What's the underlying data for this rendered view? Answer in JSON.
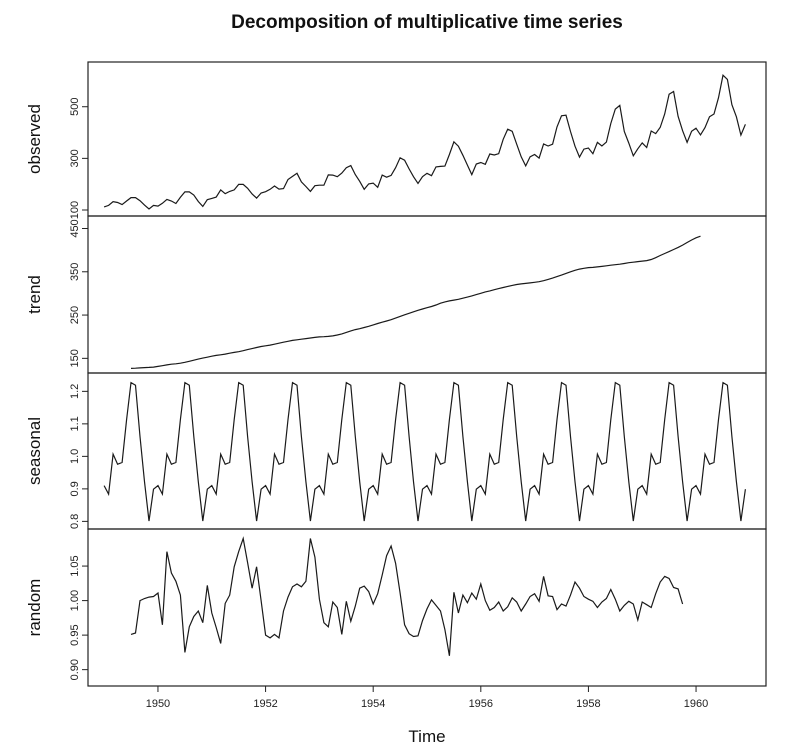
{
  "chart_data": {
    "type": "line",
    "title": "Decomposition of multiplicative time series",
    "xlabel": "Time",
    "xlim": [
      1948.7,
      1961.3
    ],
    "x_ticks": [
      "1950",
      "1952",
      "1954",
      "1956",
      "1958",
      "1960"
    ],
    "start": 1949,
    "frequency": 12,
    "grid": false,
    "panels": [
      {
        "name": "observed",
        "ylim": [
          100,
          650
        ],
        "yticks": [
          "100",
          "300",
          "500"
        ],
        "values": [
          112,
          118,
          132,
          129,
          121,
          135,
          148,
          148,
          136,
          119,
          104,
          118,
          115,
          126,
          141,
          135,
          125,
          149,
          170,
          170,
          158,
          133,
          114,
          140,
          145,
          150,
          178,
          163,
          172,
          178,
          199,
          199,
          184,
          162,
          146,
          166,
          171,
          180,
          193,
          181,
          183,
          218,
          230,
          242,
          209,
          191,
          172,
          194,
          196,
          196,
          236,
          235,
          229,
          243,
          264,
          272,
          237,
          211,
          180,
          201,
          204,
          188,
          235,
          227,
          234,
          264,
          302,
          293,
          259,
          229,
          203,
          229,
          242,
          233,
          267,
          269,
          270,
          315,
          364,
          347,
          312,
          274,
          237,
          278,
          284,
          277,
          317,
          313,
          318,
          374,
          413,
          405,
          355,
          306,
          271,
          306,
          315,
          301,
          356,
          348,
          355,
          422,
          465,
          467,
          404,
          347,
          305,
          336,
          340,
          318,
          362,
          348,
          363,
          435,
          491,
          505,
          404,
          359,
          310,
          337,
          360,
          342,
          406,
          396,
          420,
          472,
          548,
          559,
          463,
          407,
          362,
          405,
          417,
          391,
          419,
          461,
          472,
          535,
          622,
          606,
          508,
          461,
          390,
          432
        ]
      },
      {
        "name": "trend",
        "ylim": [
          130,
          465
        ],
        "yticks": [
          "150",
          "250",
          "350",
          "450"
        ],
        "start": 1949.5,
        "values": [
          126.8,
          127.3,
          127.9,
          128.6,
          129.0,
          129.8,
          131.3,
          133.1,
          134.9,
          136.4,
          137.4,
          138.8,
          140.9,
          143.2,
          145.7,
          148.2,
          150.5,
          152.7,
          155.0,
          156.9,
          158.2,
          159.8,
          161.8,
          163.7,
          165.3,
          167.6,
          170.2,
          172.5,
          175.0,
          177.3,
          179.0,
          180.5,
          182.6,
          185.1,
          187.2,
          189.4,
          191.5,
          192.9,
          194.2,
          195.5,
          197.0,
          198.4,
          199.6,
          199.9,
          200.6,
          201.9,
          203.9,
          206.5,
          210.0,
          213.4,
          216.3,
          218.6,
          221.2,
          224.1,
          227.2,
          230.4,
          233.5,
          236.3,
          239.3,
          243.0,
          247.0,
          250.7,
          254.1,
          257.6,
          261.0,
          264.1,
          267.0,
          269.8,
          273.3,
          277.3,
          280.5,
          282.8,
          284.6,
          286.5,
          289.0,
          291.6,
          294.2,
          297.2,
          300.3,
          303.4,
          305.9,
          308.5,
          311.1,
          313.6,
          316.1,
          318.5,
          320.6,
          322.1,
          323.1,
          324.3,
          325.6,
          327.1,
          329.4,
          332.4,
          335.5,
          338.8,
          342.4,
          346.3,
          350.0,
          353.4,
          356.1,
          358.0,
          359.6,
          360.2,
          361.2,
          362.4,
          363.8,
          365.2,
          366.3,
          367.5,
          369.1,
          370.9,
          372.2,
          373.5,
          374.6,
          375.8,
          378.3,
          382.5,
          387.5,
          392.3,
          396.7,
          401.4,
          406.3,
          411.6,
          417.6,
          423.4,
          428.5,
          432.3
        ]
      },
      {
        "name": "seasonal",
        "ylim": [
          0.795,
          1.238
        ],
        "yticks": [
          "0.8",
          "0.9",
          "1.0",
          "1.1",
          "1.2"
        ],
        "values": [
          0.91,
          0.884,
          1.007,
          0.976,
          0.981,
          1.113,
          1.227,
          1.219,
          1.061,
          0.922,
          0.801,
          0.899
        ]
      },
      {
        "name": "random",
        "ylim": [
          0.885,
          1.095
        ],
        "yticks": [
          "0.90",
          "0.95",
          "1.00",
          "1.05"
        ],
        "start": 1949.5,
        "values": [
          0.951,
          0.953,
          1.0,
          1.003,
          1.005,
          1.006,
          1.011,
          0.965,
          1.071,
          1.04,
          1.028,
          1.008,
          0.925,
          0.962,
          0.977,
          0.985,
          0.968,
          1.022,
          0.982,
          0.961,
          0.938,
          0.996,
          1.008,
          1.049,
          1.071,
          1.09,
          1.055,
          1.018,
          1.049,
          1.0,
          0.95,
          0.946,
          0.951,
          0.946,
          0.985,
          1.005,
          1.02,
          1.024,
          1.02,
          1.028,
          1.09,
          1.063,
          1.002,
          0.968,
          0.962,
          0.998,
          0.99,
          0.951,
          0.999,
          0.97,
          0.992,
          1.018,
          1.021,
          1.013,
          0.995,
          1.01,
          1.037,
          1.065,
          1.079,
          1.054,
          1.011,
          0.965,
          0.952,
          0.948,
          0.949,
          0.971,
          0.988,
          1.001,
          0.993,
          0.985,
          0.958,
          0.92,
          1.012,
          0.982,
          1.008,
          0.997,
          1.011,
          1.002,
          1.024,
          1.0,
          0.986,
          0.99,
          0.998,
          0.985,
          0.991,
          1.004,
          0.998,
          0.985,
          0.995,
          1.006,
          1.01,
          0.999,
          1.035,
          1.007,
          1.006,
          0.987,
          0.995,
          0.992,
          1.008,
          1.027,
          1.018,
          1.006,
          1.002,
          0.999,
          0.99,
          0.998,
          1.003,
          1.016,
          1.002,
          0.985,
          0.993,
          0.999,
          0.995,
          0.972,
          0.998,
          0.994,
          0.99,
          1.01,
          1.027,
          1.035,
          1.032,
          1.019,
          1.017,
          0.995
        ]
      }
    ]
  }
}
